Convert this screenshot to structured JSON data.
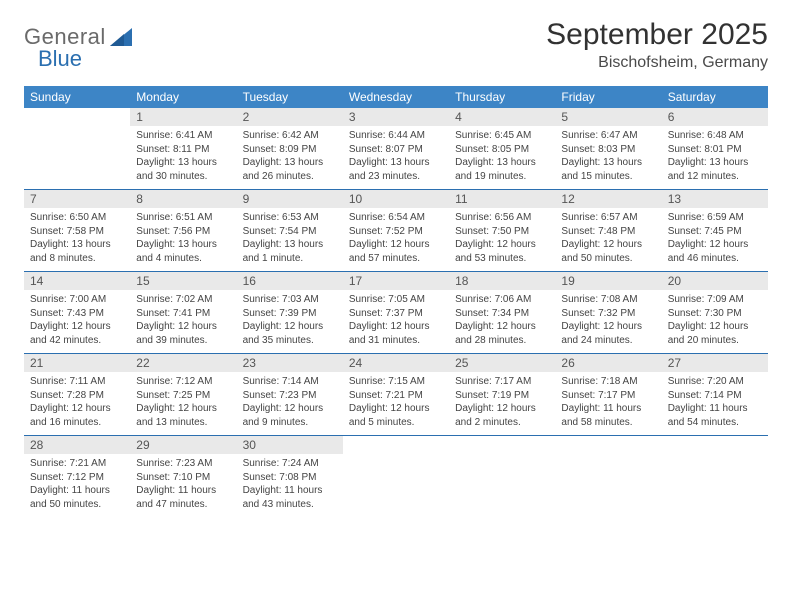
{
  "logo": {
    "text1": "General",
    "text2": "Blue"
  },
  "title": "September 2025",
  "location": "Bischofsheim, Germany",
  "colors": {
    "header_bg": "#3d85c6",
    "header_text": "#ffffff",
    "daynum_bg": "#e9e9e9",
    "border": "#2b6fb0",
    "logo_accent": "#2b6fb0"
  },
  "weekdays": [
    "Sunday",
    "Monday",
    "Tuesday",
    "Wednesday",
    "Thursday",
    "Friday",
    "Saturday"
  ],
  "weeks": [
    [
      null,
      {
        "n": "1",
        "sr": "Sunrise: 6:41 AM",
        "ss": "Sunset: 8:11 PM",
        "dl": "Daylight: 13 hours and 30 minutes."
      },
      {
        "n": "2",
        "sr": "Sunrise: 6:42 AM",
        "ss": "Sunset: 8:09 PM",
        "dl": "Daylight: 13 hours and 26 minutes."
      },
      {
        "n": "3",
        "sr": "Sunrise: 6:44 AM",
        "ss": "Sunset: 8:07 PM",
        "dl": "Daylight: 13 hours and 23 minutes."
      },
      {
        "n": "4",
        "sr": "Sunrise: 6:45 AM",
        "ss": "Sunset: 8:05 PM",
        "dl": "Daylight: 13 hours and 19 minutes."
      },
      {
        "n": "5",
        "sr": "Sunrise: 6:47 AM",
        "ss": "Sunset: 8:03 PM",
        "dl": "Daylight: 13 hours and 15 minutes."
      },
      {
        "n": "6",
        "sr": "Sunrise: 6:48 AM",
        "ss": "Sunset: 8:01 PM",
        "dl": "Daylight: 13 hours and 12 minutes."
      }
    ],
    [
      {
        "n": "7",
        "sr": "Sunrise: 6:50 AM",
        "ss": "Sunset: 7:58 PM",
        "dl": "Daylight: 13 hours and 8 minutes."
      },
      {
        "n": "8",
        "sr": "Sunrise: 6:51 AM",
        "ss": "Sunset: 7:56 PM",
        "dl": "Daylight: 13 hours and 4 minutes."
      },
      {
        "n": "9",
        "sr": "Sunrise: 6:53 AM",
        "ss": "Sunset: 7:54 PM",
        "dl": "Daylight: 13 hours and 1 minute."
      },
      {
        "n": "10",
        "sr": "Sunrise: 6:54 AM",
        "ss": "Sunset: 7:52 PM",
        "dl": "Daylight: 12 hours and 57 minutes."
      },
      {
        "n": "11",
        "sr": "Sunrise: 6:56 AM",
        "ss": "Sunset: 7:50 PM",
        "dl": "Daylight: 12 hours and 53 minutes."
      },
      {
        "n": "12",
        "sr": "Sunrise: 6:57 AM",
        "ss": "Sunset: 7:48 PM",
        "dl": "Daylight: 12 hours and 50 minutes."
      },
      {
        "n": "13",
        "sr": "Sunrise: 6:59 AM",
        "ss": "Sunset: 7:45 PM",
        "dl": "Daylight: 12 hours and 46 minutes."
      }
    ],
    [
      {
        "n": "14",
        "sr": "Sunrise: 7:00 AM",
        "ss": "Sunset: 7:43 PM",
        "dl": "Daylight: 12 hours and 42 minutes."
      },
      {
        "n": "15",
        "sr": "Sunrise: 7:02 AM",
        "ss": "Sunset: 7:41 PM",
        "dl": "Daylight: 12 hours and 39 minutes."
      },
      {
        "n": "16",
        "sr": "Sunrise: 7:03 AM",
        "ss": "Sunset: 7:39 PM",
        "dl": "Daylight: 12 hours and 35 minutes."
      },
      {
        "n": "17",
        "sr": "Sunrise: 7:05 AM",
        "ss": "Sunset: 7:37 PM",
        "dl": "Daylight: 12 hours and 31 minutes."
      },
      {
        "n": "18",
        "sr": "Sunrise: 7:06 AM",
        "ss": "Sunset: 7:34 PM",
        "dl": "Daylight: 12 hours and 28 minutes."
      },
      {
        "n": "19",
        "sr": "Sunrise: 7:08 AM",
        "ss": "Sunset: 7:32 PM",
        "dl": "Daylight: 12 hours and 24 minutes."
      },
      {
        "n": "20",
        "sr": "Sunrise: 7:09 AM",
        "ss": "Sunset: 7:30 PM",
        "dl": "Daylight: 12 hours and 20 minutes."
      }
    ],
    [
      {
        "n": "21",
        "sr": "Sunrise: 7:11 AM",
        "ss": "Sunset: 7:28 PM",
        "dl": "Daylight: 12 hours and 16 minutes."
      },
      {
        "n": "22",
        "sr": "Sunrise: 7:12 AM",
        "ss": "Sunset: 7:25 PM",
        "dl": "Daylight: 12 hours and 13 minutes."
      },
      {
        "n": "23",
        "sr": "Sunrise: 7:14 AM",
        "ss": "Sunset: 7:23 PM",
        "dl": "Daylight: 12 hours and 9 minutes."
      },
      {
        "n": "24",
        "sr": "Sunrise: 7:15 AM",
        "ss": "Sunset: 7:21 PM",
        "dl": "Daylight: 12 hours and 5 minutes."
      },
      {
        "n": "25",
        "sr": "Sunrise: 7:17 AM",
        "ss": "Sunset: 7:19 PM",
        "dl": "Daylight: 12 hours and 2 minutes."
      },
      {
        "n": "26",
        "sr": "Sunrise: 7:18 AM",
        "ss": "Sunset: 7:17 PM",
        "dl": "Daylight: 11 hours and 58 minutes."
      },
      {
        "n": "27",
        "sr": "Sunrise: 7:20 AM",
        "ss": "Sunset: 7:14 PM",
        "dl": "Daylight: 11 hours and 54 minutes."
      }
    ],
    [
      {
        "n": "28",
        "sr": "Sunrise: 7:21 AM",
        "ss": "Sunset: 7:12 PM",
        "dl": "Daylight: 11 hours and 50 minutes."
      },
      {
        "n": "29",
        "sr": "Sunrise: 7:23 AM",
        "ss": "Sunset: 7:10 PM",
        "dl": "Daylight: 11 hours and 47 minutes."
      },
      {
        "n": "30",
        "sr": "Sunrise: 7:24 AM",
        "ss": "Sunset: 7:08 PM",
        "dl": "Daylight: 11 hours and 43 minutes."
      },
      null,
      null,
      null,
      null
    ]
  ]
}
